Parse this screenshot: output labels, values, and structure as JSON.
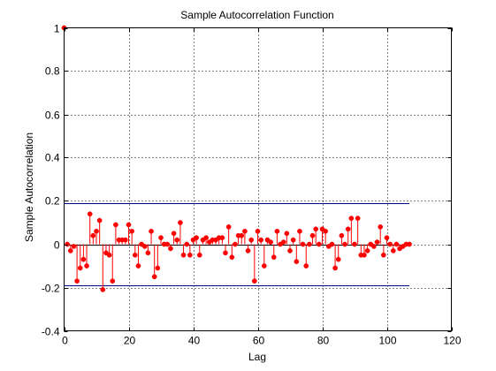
{
  "chart_data": {
    "type": "stem",
    "title": "Sample Autocorrelation Function",
    "xlabel": "Lag",
    "ylabel": "Sample Autocorrelation",
    "xlim": [
      0,
      120
    ],
    "ylim": [
      -0.4,
      1
    ],
    "xticks": [
      0,
      20,
      40,
      60,
      80,
      100,
      120
    ],
    "yticks": [
      -0.4,
      -0.2,
      0,
      0.2,
      0.4,
      0.6,
      0.8,
      1
    ],
    "xtick_labels": [
      "0",
      "20",
      "40",
      "60",
      "80",
      "100",
      "120"
    ],
    "ytick_labels": [
      "-0.4",
      "-0.2",
      "0",
      "0.2",
      "0.4",
      "0.6",
      "0.8",
      "1"
    ],
    "grid": "dotted",
    "confidence_bounds": [
      0.19,
      -0.19
    ],
    "confidence_range": [
      0,
      107
    ],
    "colors": {
      "stem": "#ff0000",
      "bounds": "#00007f",
      "axes": "#000000",
      "grid": "#000000"
    },
    "lags": [
      0,
      1,
      2,
      3,
      4,
      5,
      6,
      7,
      8,
      9,
      10,
      11,
      12,
      13,
      14,
      15,
      16,
      17,
      18,
      19,
      20,
      21,
      22,
      23,
      24,
      25,
      26,
      27,
      28,
      29,
      30,
      31,
      32,
      33,
      34,
      35,
      36,
      37,
      38,
      39,
      40,
      41,
      42,
      43,
      44,
      45,
      46,
      47,
      48,
      49,
      50,
      51,
      52,
      53,
      54,
      55,
      56,
      57,
      58,
      59,
      60,
      61,
      62,
      63,
      64,
      65,
      66,
      67,
      68,
      69,
      70,
      71,
      72,
      73,
      74,
      75,
      76,
      77,
      78,
      79,
      80,
      81,
      82,
      83,
      84,
      85,
      86,
      87,
      88,
      89,
      90,
      91,
      92,
      93,
      94,
      95,
      96,
      97,
      98,
      99,
      100,
      101,
      102,
      103,
      104,
      105,
      106,
      107
    ],
    "values": [
      1.0,
      0.0,
      -0.03,
      -0.01,
      -0.17,
      -0.11,
      -0.07,
      -0.1,
      0.14,
      0.04,
      0.06,
      0.11,
      -0.21,
      -0.04,
      -0.05,
      -0.17,
      0.09,
      0.02,
      0.02,
      0.02,
      0.09,
      0.06,
      -0.05,
      -0.1,
      0.0,
      -0.01,
      -0.04,
      0.06,
      -0.15,
      -0.11,
      0.03,
      0.0,
      0.0,
      -0.02,
      0.05,
      0.02,
      0.1,
      -0.05,
      0.0,
      -0.05,
      0.02,
      0.03,
      -0.05,
      0.02,
      0.03,
      0.01,
      0.02,
      0.02,
      0.03,
      0.03,
      -0.04,
      0.08,
      -0.06,
      0.0,
      0.04,
      0.04,
      0.06,
      -0.03,
      0.02,
      -0.17,
      0.06,
      0.02,
      -0.1,
      0.02,
      0.01,
      -0.06,
      0.06,
      0.0,
      0.01,
      0.05,
      -0.03,
      0.02,
      -0.08,
      0.06,
      0.0,
      -0.1,
      0.0,
      0.04,
      0.07,
      0.0,
      0.07,
      0.06,
      -0.01,
      0.0,
      -0.11,
      -0.07,
      0.04,
      0.0,
      0.07,
      0.12,
      0.0,
      0.12,
      -0.05,
      -0.05,
      -0.03,
      0.0,
      -0.01,
      0.01,
      0.08,
      -0.05,
      0.03,
      0.0,
      -0.03,
      0.0,
      -0.02,
      -0.01,
      0.0,
      0.0
    ]
  }
}
